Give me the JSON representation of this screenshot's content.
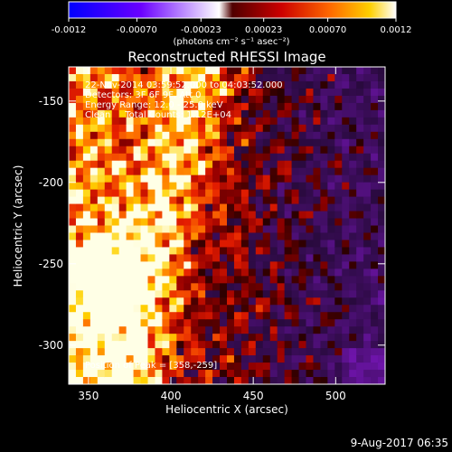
{
  "colorbar": {
    "ticks": [
      "-0.0012",
      "-0.00070",
      "-0.00023",
      "0.00023",
      "0.00070",
      "0.0012"
    ],
    "tick_values": [
      -0.0012,
      -0.0007,
      -0.00023,
      0.00023,
      0.0007,
      0.0012
    ],
    "range": [
      -0.0012,
      0.0012
    ],
    "unit_label": "(photons cm⁻² s⁻¹ asec⁻²)",
    "colors": [
      "#0000ff",
      "#7f00ff",
      "#ffffff",
      "#800000",
      "#ff0000",
      "#ff8000",
      "#ffff00",
      "#ffffff"
    ]
  },
  "chart_data": {
    "type": "heatmap",
    "title": "Reconstructed RHESSI Image",
    "xlabel": "Heliocentric X (arcsec)",
    "ylabel": "Heliocentric Y (arcsec)",
    "xlim": [
      338,
      530
    ],
    "ylim": [
      -324,
      -129
    ],
    "x_ticks": [
      350,
      400,
      450,
      500
    ],
    "y_ticks": [
      -150,
      -200,
      -250,
      -300
    ],
    "annotations": [
      "22-Nov-2014 03:59:52.000 to 04:03:52.000",
      "Detectors: 3F 6F 9F, Att 0",
      "Energy Range: 12.0 - 25.0 keV",
      "Clean     Total Counts: 1.12E+04"
    ],
    "peak_label": "Position of Peak = [358,-259]",
    "peak": [
      358,
      -259
    ],
    "value_range": [
      -0.0012,
      0.0012
    ]
  },
  "footer": {
    "timestamp": "9-Aug-2017 06:35"
  }
}
